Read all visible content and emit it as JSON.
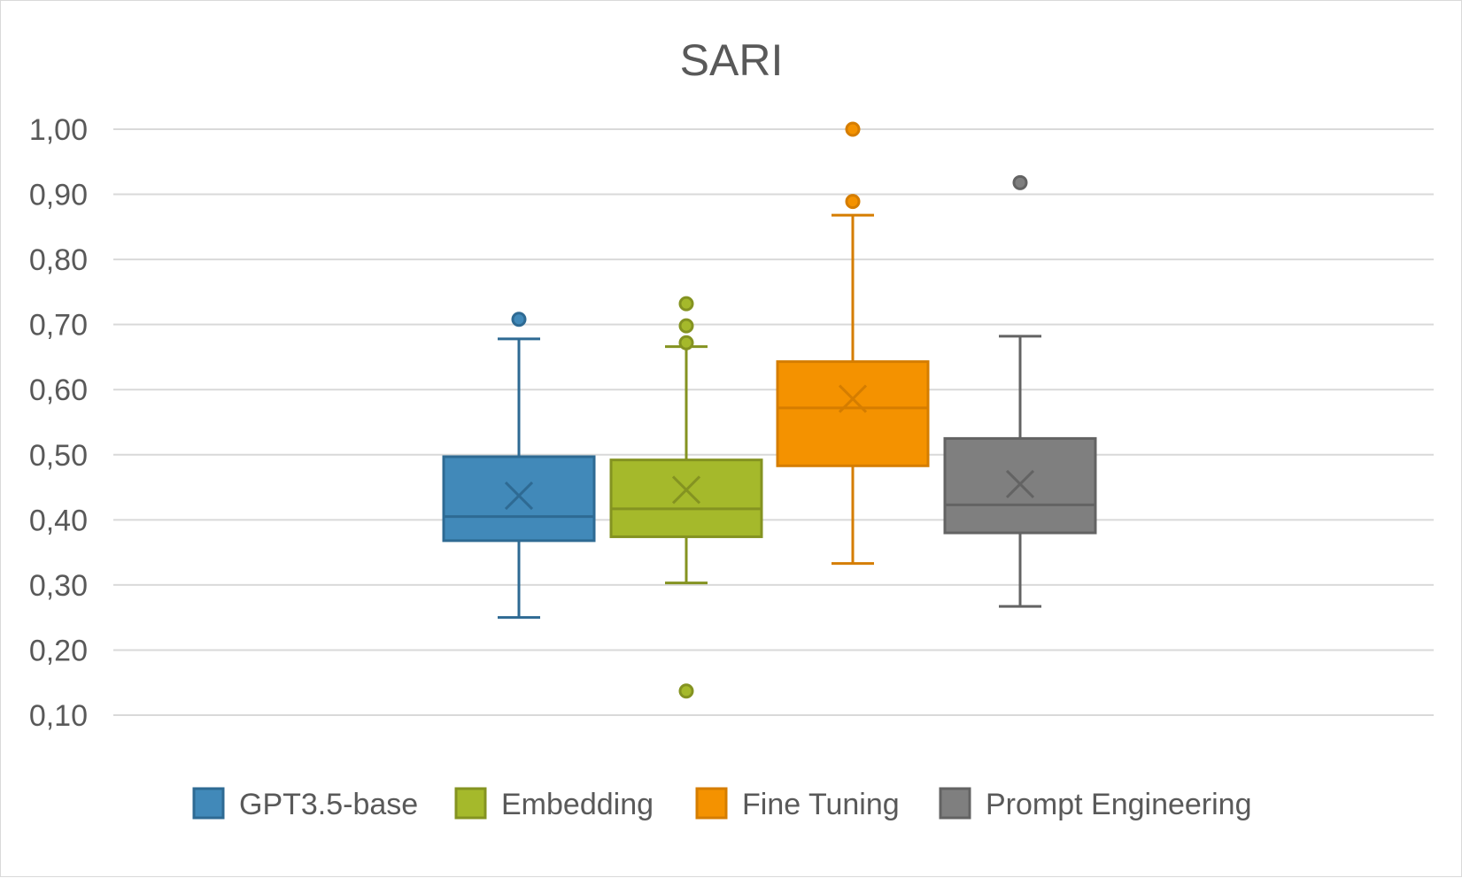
{
  "chart_data": {
    "type": "box",
    "title": "SARI",
    "xlabel": "",
    "ylabel": "",
    "ylim": [
      0.1,
      1.0
    ],
    "yticks": [
      1.0,
      0.9,
      0.8,
      0.7,
      0.6,
      0.5,
      0.4,
      0.3,
      0.2,
      0.1
    ],
    "ytick_labels": [
      "1,00",
      "0,90",
      "0,80",
      "0,70",
      "0,60",
      "0,50",
      "0,40",
      "0,30",
      "0,20",
      "0,10"
    ],
    "grid": true,
    "legend_position": "bottom",
    "series": [
      {
        "name": "GPT3.5-base",
        "color": "#4189b9",
        "edge_color": "#2e6a93",
        "whisker_low": 0.25,
        "q1": 0.368,
        "median": 0.405,
        "q3": 0.497,
        "whisker_high": 0.678,
        "mean": 0.437,
        "outliers": [
          0.708
        ]
      },
      {
        "name": "Embedding",
        "color": "#a5b92b",
        "edge_color": "#849321",
        "whisker_low": 0.303,
        "q1": 0.374,
        "median": 0.417,
        "q3": 0.492,
        "whisker_high": 0.666,
        "mean": 0.446,
        "outliers": [
          0.732,
          0.698,
          0.672,
          0.137
        ]
      },
      {
        "name": "Fine Tuning",
        "color": "#f49200",
        "edge_color": "#d57d00",
        "whisker_low": 0.333,
        "q1": 0.483,
        "median": 0.572,
        "q3": 0.643,
        "whisker_high": 0.868,
        "mean": 0.586,
        "outliers": [
          1.0,
          0.889
        ]
      },
      {
        "name": "Prompt Engineering",
        "color": "#7f7f7f",
        "edge_color": "#636363",
        "whisker_low": 0.267,
        "q1": 0.38,
        "median": 0.423,
        "q3": 0.525,
        "whisker_high": 0.682,
        "mean": 0.455,
        "outliers": [
          0.918
        ]
      }
    ]
  }
}
